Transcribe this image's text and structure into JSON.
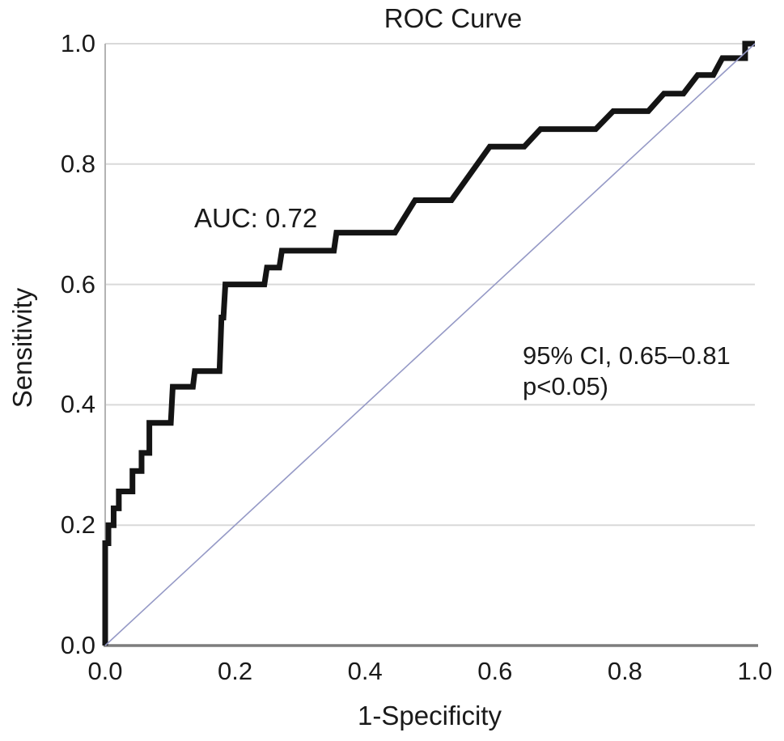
{
  "figure": {
    "title": "ROC Curve",
    "x_axis_label": "1-Specificity",
    "y_axis_label": "Sensitivity",
    "annotations": {
      "auc": "AUC: 0.72",
      "ci_line1": "95% CI, 0.65–0.81",
      "ci_line2": "p<0.05)"
    }
  },
  "chart_data": {
    "type": "line",
    "title": "ROC Curve",
    "xlabel": "1-Specificity",
    "ylabel": "Sensitivity",
    "xlim": [
      0,
      1
    ],
    "ylim": [
      0,
      1
    ],
    "x_ticks": [
      "0.0",
      "0.2",
      "0.4",
      "0.6",
      "0.8",
      "1.0"
    ],
    "y_ticks": [
      "0.0",
      "0.2",
      "0.4",
      "0.6",
      "0.8",
      "1.0"
    ],
    "grid": "horizontal",
    "legend": "none",
    "auc": 0.72,
    "ci_95": [
      0.65,
      0.81
    ],
    "p_value": "p<0.05",
    "colors": {
      "curve": "#141414",
      "reference_line": "#9599c6",
      "gridline": "#d9d9d9",
      "y_axis_line": "#b3b3b3",
      "x_axis_line": "#7d7d7d",
      "text": "#1a1a1a",
      "background": "#ffffff"
    },
    "series": [
      {
        "name": "roc-curve",
        "color": "#141414",
        "stroke_width": 7,
        "points": [
          [
            0.0,
            0.0
          ],
          [
            0.0,
            0.17
          ],
          [
            0.005,
            0.17
          ],
          [
            0.005,
            0.2
          ],
          [
            0.013,
            0.2
          ],
          [
            0.013,
            0.228
          ],
          [
            0.021,
            0.228
          ],
          [
            0.021,
            0.256
          ],
          [
            0.042,
            0.256
          ],
          [
            0.042,
            0.29
          ],
          [
            0.056,
            0.29
          ],
          [
            0.056,
            0.32
          ],
          [
            0.068,
            0.32
          ],
          [
            0.068,
            0.37
          ],
          [
            0.101,
            0.37
          ],
          [
            0.104,
            0.43
          ],
          [
            0.135,
            0.43
          ],
          [
            0.138,
            0.456
          ],
          [
            0.176,
            0.456
          ],
          [
            0.179,
            0.545
          ],
          [
            0.182,
            0.545
          ],
          [
            0.185,
            0.6
          ],
          [
            0.245,
            0.6
          ],
          [
            0.249,
            0.628
          ],
          [
            0.268,
            0.628
          ],
          [
            0.272,
            0.656
          ],
          [
            0.352,
            0.656
          ],
          [
            0.356,
            0.686
          ],
          [
            0.446,
            0.686
          ],
          [
            0.477,
            0.74
          ],
          [
            0.533,
            0.74
          ],
          [
            0.592,
            0.829
          ],
          [
            0.645,
            0.829
          ],
          [
            0.67,
            0.858
          ],
          [
            0.755,
            0.858
          ],
          [
            0.782,
            0.888
          ],
          [
            0.836,
            0.888
          ],
          [
            0.86,
            0.917
          ],
          [
            0.89,
            0.917
          ],
          [
            0.912,
            0.948
          ],
          [
            0.936,
            0.948
          ],
          [
            0.95,
            0.976
          ],
          [
            0.985,
            0.976
          ],
          [
            0.985,
            1.0
          ],
          [
            1.0,
            1.0
          ]
        ]
      },
      {
        "name": "reference-diagonal",
        "color": "#9599c6",
        "stroke_width": 1.6,
        "points": [
          [
            0.0,
            0.0
          ],
          [
            1.0,
            1.0
          ]
        ]
      }
    ]
  }
}
